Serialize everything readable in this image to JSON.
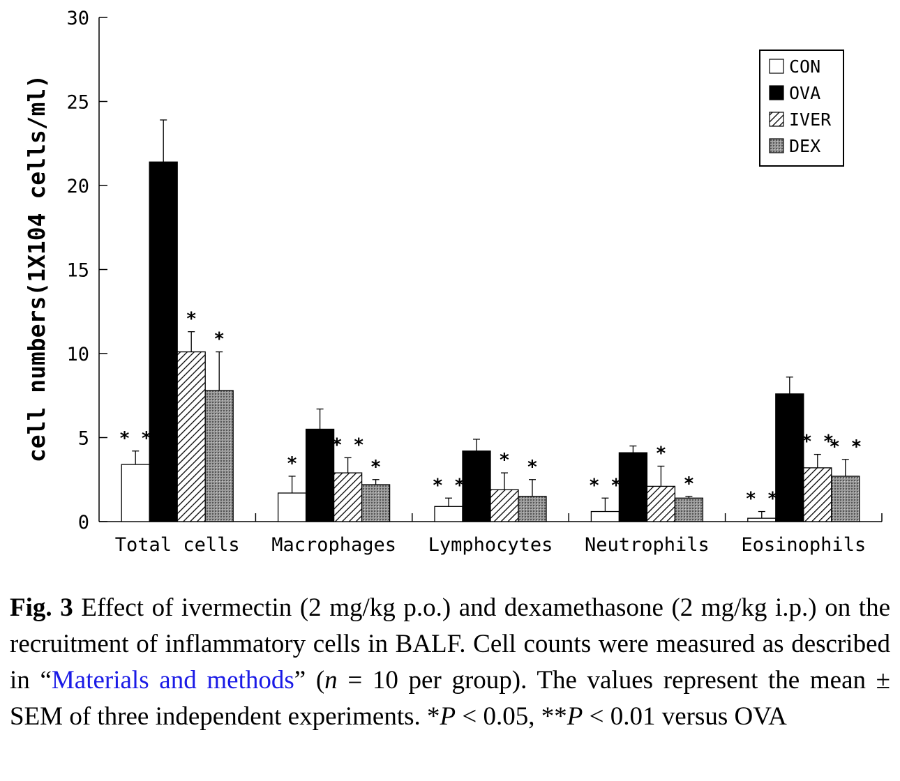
{
  "chart_data": {
    "type": "bar",
    "ylabel": "cell numbers(1X104 cells/ml)",
    "xlabel": "",
    "ylim": [
      0,
      30
    ],
    "yticks": [
      0,
      5,
      10,
      15,
      20,
      25,
      30
    ],
    "categories": [
      "Total cells",
      "Macrophages",
      "Lymphocytes",
      "Neutrophils",
      "Eosinophils"
    ],
    "series": [
      {
        "name": "CON",
        "values": [
          3.4,
          1.7,
          0.9,
          0.6,
          0.2
        ],
        "errors": [
          0.8,
          1.0,
          0.5,
          0.8,
          0.4
        ],
        "sig": [
          "**",
          "*",
          "**",
          "**",
          "**"
        ]
      },
      {
        "name": "OVA",
        "values": [
          21.4,
          5.5,
          4.2,
          4.1,
          7.6
        ],
        "errors": [
          2.5,
          1.2,
          0.7,
          0.4,
          1.0
        ],
        "sig": [
          "",
          "",
          "",
          "",
          ""
        ]
      },
      {
        "name": "IVER",
        "values": [
          10.1,
          2.9,
          1.9,
          2.1,
          3.2
        ],
        "errors": [
          1.2,
          0.9,
          1.0,
          1.2,
          0.8
        ],
        "sig": [
          "*",
          "**",
          "*",
          "*",
          "**"
        ]
      },
      {
        "name": "DEX",
        "values": [
          7.8,
          2.2,
          1.5,
          1.4,
          2.7
        ],
        "errors": [
          2.3,
          0.3,
          1.0,
          0.1,
          1.0
        ],
        "sig": [
          "*",
          "*",
          "*",
          "*",
          "**"
        ]
      }
    ],
    "legend": {
      "position": "top-right",
      "entries": [
        "CON",
        "OVA",
        "IVER",
        "DEX"
      ]
    },
    "grid": false
  },
  "caption": {
    "label": "Fig. 3",
    "part1": " Effect of ivermectin (2 mg/kg p.o.) and dexamethasone (2 mg/kg i.p.) on the recruitment of inflammatory cells in BALF. Cell counts were measured as described in “",
    "link": "Materials and methods",
    "part2": "” (",
    "n": "n",
    "part3": " = 10 per group). The values represent the mean ± SEM of three independent experiments. *",
    "p1": "P",
    "part4": " < 0.05, **",
    "p2": "P",
    "part5": " < 0.01 versus OVA"
  }
}
